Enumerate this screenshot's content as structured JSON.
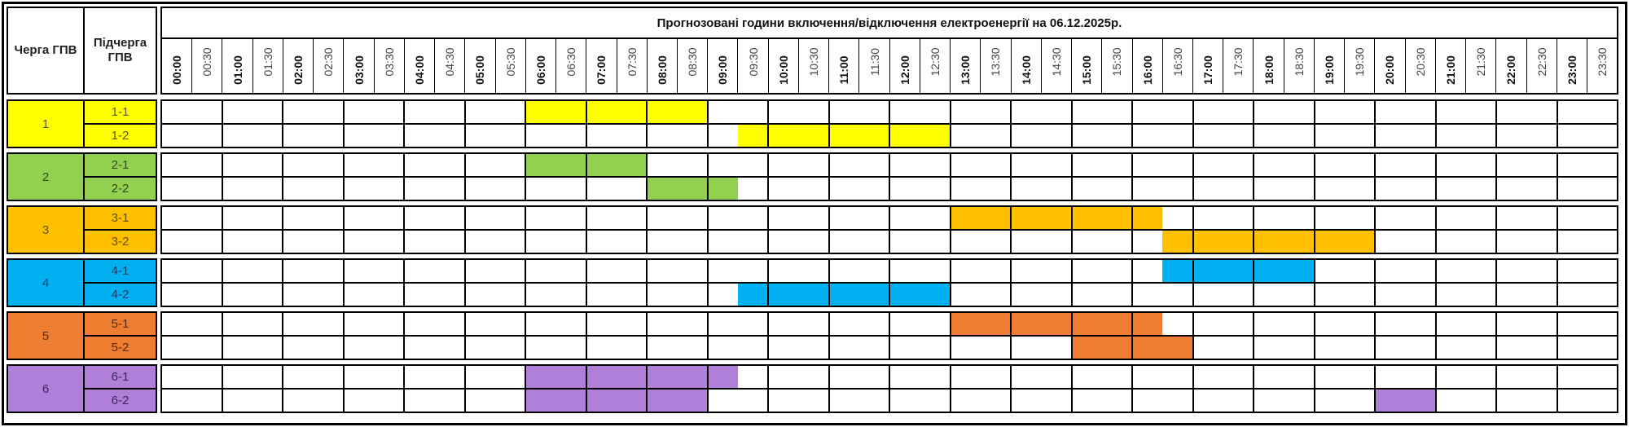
{
  "header": {
    "queue_label": "Черга ГПВ",
    "subqueue_label": "Підчерга ГПВ",
    "title": "Прогнозовані години включення/відключення електроенергії на 06.12.2025р."
  },
  "times": [
    "00:00",
    "00:30",
    "01:00",
    "01:30",
    "02:00",
    "02:30",
    "03:00",
    "03:30",
    "04:00",
    "04:30",
    "05:00",
    "05:30",
    "06:00",
    "06:30",
    "07:00",
    "07:30",
    "08:00",
    "08:30",
    "09:00",
    "09:30",
    "10:00",
    "10:30",
    "11:00",
    "11:30",
    "12:00",
    "12:30",
    "13:00",
    "13:30",
    "14:00",
    "14:30",
    "15:00",
    "15:30",
    "16:00",
    "16:30",
    "17:00",
    "17:30",
    "18:00",
    "18:30",
    "19:00",
    "19:30",
    "20:00",
    "20:30",
    "21:00",
    "21:30",
    "22:00",
    "22:30",
    "23:00",
    "23:30"
  ],
  "groups": [
    {
      "label": "1",
      "color": "#FFFF00",
      "text_color": "#5a5a00",
      "subs": [
        {
          "label": "1-1",
          "outages": [
            [
              "06:00",
              "09:00"
            ]
          ]
        },
        {
          "label": "1-2",
          "outages": [
            [
              "09:30",
              "13:00"
            ]
          ]
        }
      ]
    },
    {
      "label": "2",
      "color": "#92D050",
      "text_color": "#2f4a14",
      "subs": [
        {
          "label": "2-1",
          "outages": [
            [
              "06:00",
              "08:00"
            ]
          ]
        },
        {
          "label": "2-2",
          "outages": [
            [
              "08:00",
              "09:30"
            ]
          ]
        }
      ]
    },
    {
      "label": "3",
      "color": "#FFC000",
      "text_color": "#6b4f00",
      "subs": [
        {
          "label": "3-1",
          "outages": [
            [
              "13:00",
              "16:30"
            ]
          ]
        },
        {
          "label": "3-2",
          "outages": [
            [
              "16:30",
              "20:00"
            ]
          ]
        }
      ]
    },
    {
      "label": "4",
      "color": "#00B0F0",
      "text_color": "#0b3f66",
      "subs": [
        {
          "label": "4-1",
          "outages": [
            [
              "16:30",
              "19:00"
            ]
          ]
        },
        {
          "label": "4-2",
          "outages": [
            [
              "09:30",
              "13:00"
            ]
          ]
        }
      ]
    },
    {
      "label": "5",
      "color": "#ED7D31",
      "text_color": "#5a2a0c",
      "subs": [
        {
          "label": "5-1",
          "outages": [
            [
              "13:00",
              "16:30"
            ]
          ]
        },
        {
          "label": "5-2",
          "outages": [
            [
              "15:00",
              "17:00"
            ]
          ]
        }
      ]
    },
    {
      "label": "6",
      "color": "#B07FD8",
      "text_color": "#3e2460",
      "subs": [
        {
          "label": "6-1",
          "outages": [
            [
              "06:00",
              "09:30"
            ]
          ]
        },
        {
          "label": "6-2",
          "outages": [
            [
              "06:00",
              "09:00"
            ],
            [
              "20:00",
              "21:00"
            ]
          ]
        }
      ]
    }
  ]
}
